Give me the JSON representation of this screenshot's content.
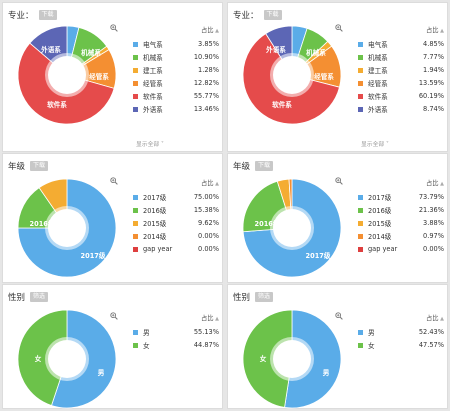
{
  "colors": [
    "#5aace8",
    "#6cc24a",
    "#f4ac32",
    "#f48f32",
    "#e54b4b",
    "#5c66b5",
    "#de3f3f"
  ],
  "column_labels": {
    "pct_header": "占比",
    "show_all": "显示全部"
  },
  "left": {
    "major": {
      "title": "专业：",
      "tag": "下载",
      "labels_on_chart": [
        "外语系",
        "机械系",
        "经管系",
        "软件系"
      ],
      "chart_data": {
        "type": "pie",
        "categories": [
          "电气系",
          "机械系",
          "建工系",
          "经管系",
          "软件系",
          "外语系"
        ],
        "values": [
          3.85,
          10.9,
          1.28,
          12.82,
          55.77,
          13.46
        ],
        "value_labels": [
          "3.85%",
          "10.90%",
          "1.28%",
          "12.82%",
          "55.77%",
          "13.46%"
        ],
        "colors": [
          "#5aace8",
          "#6cc24a",
          "#f4ac32",
          "#f48f32",
          "#e54b4b",
          "#5c66b5"
        ]
      }
    },
    "grade": {
      "title": "年级",
      "tag": "下载",
      "labels_on_chart": [
        "2016级",
        "2017级"
      ],
      "chart_data": {
        "type": "pie",
        "categories": [
          "2017级",
          "2016级",
          "2015级",
          "2014级",
          "gap year"
        ],
        "values": [
          75.0,
          15.38,
          9.62,
          0.0,
          0.0
        ],
        "value_labels": [
          "75.00%",
          "15.38%",
          "9.62%",
          "0.00%",
          "0.00%"
        ],
        "colors": [
          "#5aace8",
          "#6cc24a",
          "#f4ac32",
          "#f48f32",
          "#de3f3f"
        ]
      }
    },
    "gender": {
      "title": "性别",
      "tag": "筛选",
      "labels_on_chart": [
        "女",
        "男"
      ],
      "chart_data": {
        "type": "pie",
        "categories": [
          "男",
          "女"
        ],
        "values": [
          55.13,
          44.87
        ],
        "value_labels": [
          "55.13%",
          "44.87%"
        ],
        "colors": [
          "#5aace8",
          "#6cc24a"
        ]
      }
    }
  },
  "right": {
    "major": {
      "title": "专业：",
      "tag": "下载",
      "labels_on_chart": [
        "外语系",
        "机械系",
        "经管系",
        "软件系"
      ],
      "chart_data": {
        "type": "pie",
        "categories": [
          "电气系",
          "机械系",
          "建工系",
          "经管系",
          "软件系",
          "外语系"
        ],
        "values": [
          4.85,
          7.77,
          1.94,
          13.59,
          60.19,
          8.74
        ],
        "value_labels": [
          "4.85%",
          "7.77%",
          "1.94%",
          "13.59%",
          "60.19%",
          "8.74%"
        ],
        "colors": [
          "#5aace8",
          "#6cc24a",
          "#f4ac32",
          "#f48f32",
          "#e54b4b",
          "#5c66b5"
        ]
      }
    },
    "grade": {
      "title": "年级",
      "tag": "下载",
      "labels_on_chart": [
        "2016级",
        "2017级"
      ],
      "chart_data": {
        "type": "pie",
        "categories": [
          "2017级",
          "2016级",
          "2015级",
          "2014级",
          "gap year"
        ],
        "values": [
          73.79,
          21.36,
          3.88,
          0.97,
          0.0
        ],
        "value_labels": [
          "73.79%",
          "21.36%",
          "3.88%",
          "0.97%",
          "0.00%"
        ],
        "colors": [
          "#5aace8",
          "#6cc24a",
          "#f4ac32",
          "#f48f32",
          "#de3f3f"
        ]
      }
    },
    "gender": {
      "title": "性别",
      "tag": "筛选",
      "labels_on_chart": [
        "女",
        "男"
      ],
      "chart_data": {
        "type": "pie",
        "categories": [
          "男",
          "女"
        ],
        "values": [
          52.43,
          47.57
        ],
        "value_labels": [
          "52.43%",
          "47.57%"
        ],
        "colors": [
          "#5aace8",
          "#6cc24a"
        ]
      }
    }
  }
}
